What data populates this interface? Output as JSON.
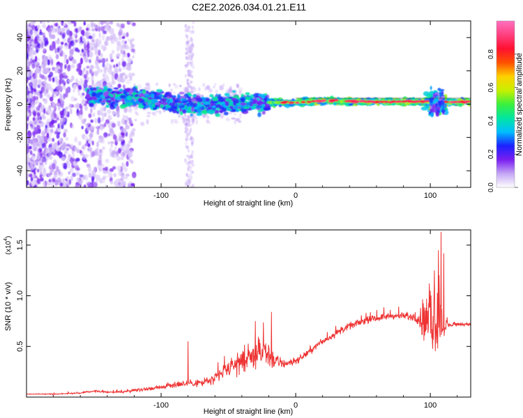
{
  "title": "C2E2.2026.034.01.21.E11",
  "chart_data": [
    {
      "type": "heatmap",
      "title": "C2E2.2026.034.01.21.E11",
      "xlabel": "Height of straight line (km)",
      "ylabel": "Frequency (Hz)",
      "xlim": [
        -200,
        130
      ],
      "ylim": [
        -50,
        50
      ],
      "xticks": [
        -100,
        0,
        100
      ],
      "yticks": [
        -40,
        -20,
        0,
        20,
        40
      ],
      "xtick_labels": [
        "-100",
        "0",
        "100"
      ],
      "ytick_labels": [
        "-40",
        "-20",
        "0",
        "20",
        "40"
      ],
      "colorbar": {
        "label": "Normalized spectral amplitude",
        "range": [
          0,
          1
        ],
        "ticks": [
          0.0,
          0.2,
          0.4,
          0.6,
          0.8
        ],
        "tick_labels": [
          "0.0",
          "0.2",
          "0.4",
          "0.6",
          "0.8"
        ],
        "colormap": [
          "#ffffff",
          "#c4a6f5",
          "#7a1ef0",
          "#1a22ff",
          "#00bfff",
          "#00e6a0",
          "#3cf03c",
          "#c8f000",
          "#ffd000",
          "#ff5000",
          "#ff1030",
          "#ff4080",
          "#ff70c0"
        ]
      },
      "ridge": {
        "description": "dominant frequency band vs height",
        "points": [
          [
            -150,
            5
          ],
          [
            -120,
            4
          ],
          [
            -100,
            2
          ],
          [
            -80,
            0
          ],
          [
            -60,
            -1
          ],
          [
            -50,
            1
          ],
          [
            -40,
            0
          ],
          [
            -20,
            1
          ],
          [
            0,
            1
          ],
          [
            20,
            2
          ],
          [
            50,
            1.5
          ],
          [
            90,
            1.5
          ],
          [
            105,
            1
          ],
          [
            130,
            1.5
          ]
        ]
      }
    },
    {
      "type": "line",
      "xlabel": "Height of straight line (km)",
      "ylabel": "SNR (10 * v/v)",
      "y_multiplier_label": "(x10",
      "y_multiplier_exp": "4",
      "xlim": [
        -200,
        130
      ],
      "ylim": [
        0,
        1.65
      ],
      "xticks": [
        -100,
        0,
        100
      ],
      "yticks": [
        0.5,
        1.0,
        1.5
      ],
      "xtick_labels": [
        "-100",
        "0",
        "100"
      ],
      "ytick_labels": [
        "0.5",
        "1.0",
        "1.5"
      ],
      "line_color": "#ee3333",
      "series": [
        {
          "name": "SNR",
          "envelope_x": [
            -200,
            -180,
            -160,
            -150,
            -140,
            -130,
            -120,
            -110,
            -100,
            -90,
            -80,
            -70,
            -60,
            -50,
            -45,
            -40,
            -35,
            -30,
            -25,
            -20,
            -15,
            -10,
            0,
            10,
            20,
            30,
            40,
            50,
            60,
            70,
            80,
            90,
            95,
            100,
            103,
            105,
            107,
            110,
            115,
            120,
            130
          ],
          "envelope_y": [
            0.03,
            0.03,
            0.04,
            0.06,
            0.05,
            0.05,
            0.07,
            0.08,
            0.1,
            0.12,
            0.14,
            0.14,
            0.18,
            0.28,
            0.32,
            0.36,
            0.38,
            0.42,
            0.44,
            0.42,
            0.35,
            0.33,
            0.35,
            0.45,
            0.55,
            0.63,
            0.7,
            0.75,
            0.78,
            0.8,
            0.8,
            0.78,
            0.75,
            0.74,
            0.8,
            0.75,
            0.73,
            0.7,
            0.71,
            0.72,
            0.72
          ],
          "noise_x": [
            -200,
            -160,
            -140,
            -100,
            -80,
            -60,
            -40,
            -20,
            -10,
            0,
            20,
            50,
            80,
            90,
            95,
            100,
            103,
            105,
            107,
            110,
            115,
            130
          ],
          "noise_y": [
            0.005,
            0.01,
            0.015,
            0.03,
            0.05,
            0.09,
            0.18,
            0.2,
            0.08,
            0.05,
            0.05,
            0.05,
            0.05,
            0.06,
            0.3,
            0.45,
            0.5,
            0.55,
            0.5,
            0.15,
            0.03,
            0.02
          ],
          "spikes": [
            [
              -80,
              0.55
            ],
            [
              -30,
              0.75
            ],
            [
              -18,
              0.84
            ],
            [
              103,
              1.25
            ],
            [
              106,
              1.45
            ],
            [
              108,
              1.63
            ],
            [
              110,
              1.42
            ],
            [
              100,
              1.05
            ]
          ]
        }
      ]
    }
  ]
}
